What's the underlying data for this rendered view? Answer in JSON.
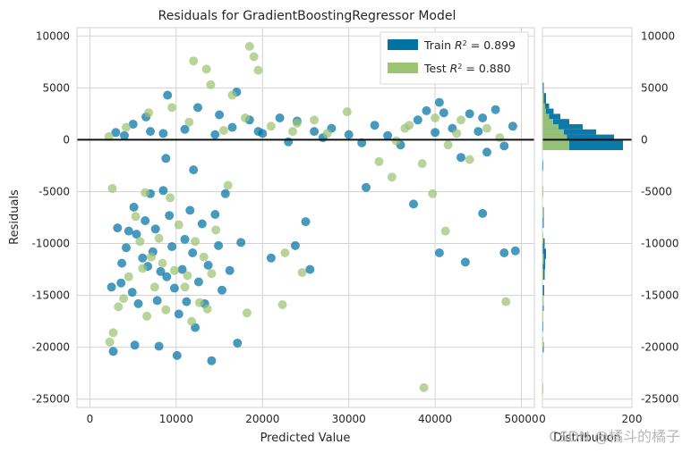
{
  "chart_data": [
    {
      "type": "scatter",
      "title": "Residuals for GradientBoostingRegressor Model",
      "xlabel": "Predicted Value",
      "ylabel": "Residuals",
      "xlim": [
        -1500,
        51500
      ],
      "ylim": [
        -25800,
        10800
      ],
      "xticks": [
        0,
        10000,
        20000,
        30000,
        40000,
        50000
      ],
      "yticks": [
        -25000,
        -20000,
        -15000,
        -10000,
        -5000,
        0,
        5000,
        10000
      ],
      "grid": true,
      "legend_location": "top-right",
      "legend": [
        {
          "label": "Train",
          "r2": "0.899",
          "color": "#0072a3"
        },
        {
          "label": "Test",
          "r2": "0.880",
          "color": "#9dc473"
        }
      ],
      "series": [
        {
          "name": "Train",
          "color": "#0072a3",
          "points": [
            [
              2500,
              -14200
            ],
            [
              2700,
              -20400
            ],
            [
              3200,
              -8500
            ],
            [
              3600,
              -13800
            ],
            [
              3700,
              -11900
            ],
            [
              4200,
              -10400
            ],
            [
              4500,
              -8800
            ],
            [
              4900,
              -14700
            ],
            [
              5100,
              -6500
            ],
            [
              5200,
              -19800
            ],
            [
              5400,
              -9100
            ],
            [
              5600,
              -15800
            ],
            [
              6100,
              -11400
            ],
            [
              6400,
              -7800
            ],
            [
              6700,
              -12200
            ],
            [
              7000,
              -5200
            ],
            [
              7300,
              -10800
            ],
            [
              7600,
              -8600
            ],
            [
              7800,
              -15500
            ],
            [
              8000,
              -19900
            ],
            [
              8200,
              -12700
            ],
            [
              8500,
              -4900
            ],
            [
              8900,
              -13200
            ],
            [
              9200,
              -7300
            ],
            [
              9500,
              -10300
            ],
            [
              9800,
              -14300
            ],
            [
              10100,
              -20800
            ],
            [
              10300,
              -16800
            ],
            [
              10700,
              -12500
            ],
            [
              11000,
              -9600
            ],
            [
              11200,
              -15600
            ],
            [
              11600,
              -6800
            ],
            [
              11900,
              -10900
            ],
            [
              12200,
              -18100
            ],
            [
              12600,
              -13700
            ],
            [
              13000,
              -8100
            ],
            [
              13300,
              -15800
            ],
            [
              13700,
              -12100
            ],
            [
              14100,
              -21300
            ],
            [
              14500,
              -7200
            ],
            [
              14900,
              -10200
            ],
            [
              15300,
              -14500
            ],
            [
              15700,
              -5200
            ],
            [
              16200,
              -12600
            ],
            [
              17100,
              -19600
            ],
            [
              17500,
              -9900
            ],
            [
              21000,
              -11400
            ],
            [
              23800,
              -10200
            ],
            [
              25000,
              -7900
            ],
            [
              25500,
              -12500
            ],
            [
              32000,
              -4600
            ],
            [
              37500,
              -6200
            ],
            [
              40500,
              -10900
            ],
            [
              43500,
              -11800
            ],
            [
              45500,
              -7100
            ],
            [
              48000,
              -10900
            ],
            [
              49300,
              -10700
            ],
            [
              8800,
              -1800
            ],
            [
              12000,
              -2900
            ],
            [
              17000,
              4600
            ],
            [
              3000,
              700
            ],
            [
              5000,
              1500
            ],
            [
              6500,
              2200
            ],
            [
              9000,
              4300
            ],
            [
              12500,
              3100
            ],
            [
              15000,
              2400
            ],
            [
              18500,
              1900
            ],
            [
              20000,
              600
            ],
            [
              22000,
              2100
            ],
            [
              24000,
              1800
            ],
            [
              26000,
              800
            ],
            [
              28000,
              1100
            ],
            [
              30000,
              500
            ],
            [
              33000,
              1400
            ],
            [
              36000,
              -500
            ],
            [
              38000,
              1900
            ],
            [
              39000,
              2800
            ],
            [
              40000,
              700
            ],
            [
              41000,
              2600
            ],
            [
              42000,
              1100
            ],
            [
              43000,
              -1700
            ],
            [
              44000,
              2500
            ],
            [
              45000,
              800
            ],
            [
              46000,
              -1200
            ],
            [
              47000,
              2900
            ],
            [
              48000,
              -600
            ],
            [
              49000,
              1300
            ],
            [
              40500,
              3600
            ],
            [
              34500,
              400
            ],
            [
              31500,
              -300
            ],
            [
              14500,
              500
            ],
            [
              11000,
              1000
            ],
            [
              8500,
              600
            ],
            [
              7000,
              800
            ],
            [
              4000,
              400
            ],
            [
              16500,
              1200
            ],
            [
              19500,
              800
            ],
            [
              23000,
              -200
            ],
            [
              27000,
              200
            ],
            [
              45500,
              2100
            ]
          ]
        },
        {
          "name": "Test",
          "color": "#9dc473",
          "points": [
            [
              2300,
              -19500
            ],
            [
              2700,
              -18600
            ],
            [
              3300,
              -16100
            ],
            [
              3900,
              -15300
            ],
            [
              4500,
              -13200
            ],
            [
              5300,
              -7400
            ],
            [
              5800,
              -9800
            ],
            [
              6100,
              -12400
            ],
            [
              6600,
              -17000
            ],
            [
              7100,
              -11300
            ],
            [
              7500,
              -14200
            ],
            [
              8000,
              -9500
            ],
            [
              8400,
              -11900
            ],
            [
              8800,
              -16400
            ],
            [
              9300,
              -5600
            ],
            [
              9800,
              -12600
            ],
            [
              10300,
              -8200
            ],
            [
              11000,
              -14200
            ],
            [
              11300,
              -13100
            ],
            [
              11800,
              -17500
            ],
            [
              12200,
              -9800
            ],
            [
              12700,
              -15700
            ],
            [
              13200,
              -11300
            ],
            [
              13600,
              -16300
            ],
            [
              14100,
              -12900
            ],
            [
              14600,
              -8700
            ],
            [
              16000,
              -4400
            ],
            [
              18200,
              -16700
            ],
            [
              22300,
              -15900
            ],
            [
              22600,
              -10900
            ],
            [
              24600,
              -12800
            ],
            [
              38700,
              -23900
            ],
            [
              39700,
              -5200
            ],
            [
              41200,
              -8800
            ],
            [
              48200,
              -15600
            ],
            [
              6400,
              -5100
            ],
            [
              2600,
              -4700
            ],
            [
              12000,
              7600
            ],
            [
              13500,
              6800
            ],
            [
              18500,
              9000
            ],
            [
              19500,
              6700
            ],
            [
              19000,
              8000
            ],
            [
              14000,
              5300
            ],
            [
              16500,
              4300
            ],
            [
              24000,
              1600
            ],
            [
              27500,
              600
            ],
            [
              29800,
              2700
            ],
            [
              33500,
              -2100
            ],
            [
              35000,
              -3600
            ],
            [
              35500,
              -100
            ],
            [
              37000,
              1400
            ],
            [
              38500,
              -2300
            ],
            [
              40000,
              2100
            ],
            [
              41500,
              -500
            ],
            [
              42500,
              600
            ],
            [
              44000,
              -1900
            ],
            [
              46000,
              1100
            ],
            [
              47500,
              200
            ],
            [
              36500,
              1100
            ],
            [
              43000,
              1900
            ],
            [
              2200,
              300
            ],
            [
              4200,
              1200
            ],
            [
              6800,
              2600
            ],
            [
              9500,
              3100
            ],
            [
              11500,
              1700
            ],
            [
              15500,
              900
            ],
            [
              18000,
              2100
            ],
            [
              21000,
              1300
            ],
            [
              23500,
              800
            ],
            [
              26000,
              1900
            ]
          ]
        }
      ]
    },
    {
      "type": "bar",
      "orientation": "horizontal",
      "title": "",
      "xlabel": "Distribution",
      "xlim": [
        0,
        200
      ],
      "xticks": [
        0,
        200
      ],
      "yticks": [
        -25000,
        -20000,
        -15000,
        -10000,
        -5000,
        0,
        5000,
        10000
      ],
      "ylim": [
        -25800,
        10800
      ],
      "series": [
        {
          "name": "Train",
          "color": "#0072a3",
          "bins": [
            [
              -20500,
              -19500,
              3
            ],
            [
              -18500,
              -17500,
              2
            ],
            [
              -16500,
              -15500,
              3
            ],
            [
              -15000,
              -14000,
              4
            ],
            [
              -13500,
              -12500,
              5
            ],
            [
              -12500,
              -11500,
              6
            ],
            [
              -11500,
              -10500,
              8
            ],
            [
              -10500,
              -9500,
              5
            ],
            [
              -8500,
              -7500,
              3
            ],
            [
              -7500,
              -6500,
              3
            ],
            [
              -5500,
              -4500,
              2
            ],
            [
              -3000,
              -2000,
              2
            ],
            [
              -1000,
              0,
              180
            ],
            [
              0,
              500,
              160
            ],
            [
              500,
              1000,
              120
            ],
            [
              1000,
              1500,
              90
            ],
            [
              1500,
              2000,
              60
            ],
            [
              2000,
              2500,
              40
            ],
            [
              2500,
              3000,
              25
            ],
            [
              3000,
              3500,
              15
            ],
            [
              3500,
              4500,
              8
            ],
            [
              4500,
              5500,
              3
            ]
          ]
        },
        {
          "name": "Test",
          "color": "#9dc473",
          "bins": [
            [
              -24500,
              -23500,
              1
            ],
            [
              -20000,
              -19000,
              2
            ],
            [
              -17500,
              -16500,
              2
            ],
            [
              -16000,
              -15000,
              3
            ],
            [
              -13500,
              -12500,
              2
            ],
            [
              -12000,
              -11000,
              3
            ],
            [
              -10000,
              -9000,
              2
            ],
            [
              -7500,
              -6500,
              2
            ],
            [
              -5500,
              -4500,
              2
            ],
            [
              -1000,
              0,
              60
            ],
            [
              0,
              500,
              55
            ],
            [
              500,
              1000,
              48
            ],
            [
              1000,
              1500,
              36
            ],
            [
              1500,
              2000,
              24
            ],
            [
              2000,
              2500,
              15
            ],
            [
              2500,
              3000,
              8
            ],
            [
              3000,
              3500,
              6
            ],
            [
              3500,
              4500,
              3
            ]
          ]
        }
      ]
    }
  ],
  "watermark": "CSDN @橘斗的橘子"
}
